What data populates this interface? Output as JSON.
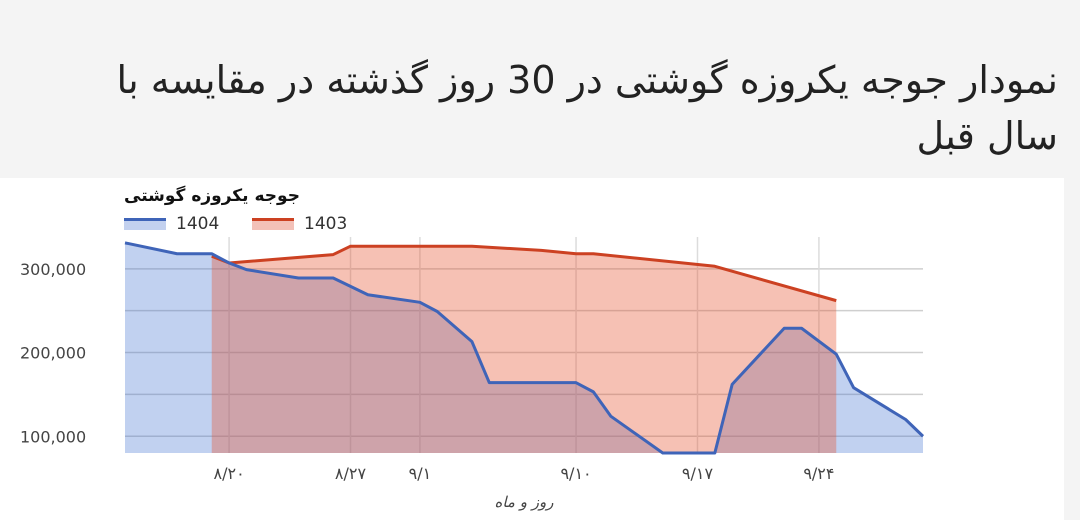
{
  "title": "نمودار جوجه یکروزه گوشتی در 30 روز گذشته در مقایسه با سال قبل",
  "chart_data": {
    "type": "area",
    "title": "جوجه یکروزه گوشتی",
    "xlabel": "روز و ماه",
    "ylabel": "",
    "ylim": [
      80000,
      338000
    ],
    "yticks": [
      100000,
      200000,
      300000
    ],
    "ytick_labels": [
      "100,000",
      "200,000",
      "300,000"
    ],
    "xticks": [
      {
        "date": "8/20",
        "label": "۸/۲۰"
      },
      {
        "date": "8/27",
        "label": "۸/۲۷"
      },
      {
        "date": "9/1",
        "label": "۹/۱"
      },
      {
        "date": "9/10",
        "label": "۹/۱۰"
      },
      {
        "date": "9/17",
        "label": "۹/۱۷"
      },
      {
        "date": "9/24",
        "label": "۹/۲۴"
      }
    ],
    "xlim": [
      "8/14",
      "9/30"
    ],
    "grid": true,
    "legend": "top-left",
    "series": [
      {
        "name": "1404",
        "color": "#3f64b8",
        "fill": "#c3d1ef",
        "points": [
          [
            "8/14",
            331000
          ],
          [
            "8/17",
            318000
          ],
          [
            "8/19",
            318000
          ],
          [
            "8/20",
            307000
          ],
          [
            "8/21",
            299000
          ],
          [
            "8/24",
            289000
          ],
          [
            "8/26",
            289000
          ],
          [
            "8/28",
            269000
          ],
          [
            "9/1",
            260000
          ],
          [
            "9/2",
            249000
          ],
          [
            "9/4",
            213000
          ],
          [
            "9/5",
            164000
          ],
          [
            "9/10",
            164000
          ],
          [
            "9/11",
            153000
          ],
          [
            "9/12",
            124000
          ],
          [
            "9/15",
            80000
          ],
          [
            "9/18",
            80000
          ],
          [
            "9/19",
            162000
          ],
          [
            "9/22",
            229000
          ],
          [
            "9/23",
            229000
          ],
          [
            "9/25",
            198000
          ],
          [
            "9/26",
            158000
          ],
          [
            "9/29",
            120000
          ],
          [
            "9/30",
            100000
          ]
        ]
      },
      {
        "name": "1403",
        "color": "#cc4122",
        "fill": "#f3c1b8",
        "points": [
          [
            "8/19",
            315000
          ],
          [
            "8/20",
            307000
          ],
          [
            "8/26",
            317000
          ],
          [
            "8/27",
            327000
          ],
          [
            "9/4",
            327000
          ],
          [
            "9/8",
            322000
          ],
          [
            "9/10",
            318000
          ],
          [
            "9/11",
            318000
          ],
          [
            "9/18",
            303000
          ],
          [
            "9/25",
            262000
          ]
        ]
      }
    ]
  }
}
